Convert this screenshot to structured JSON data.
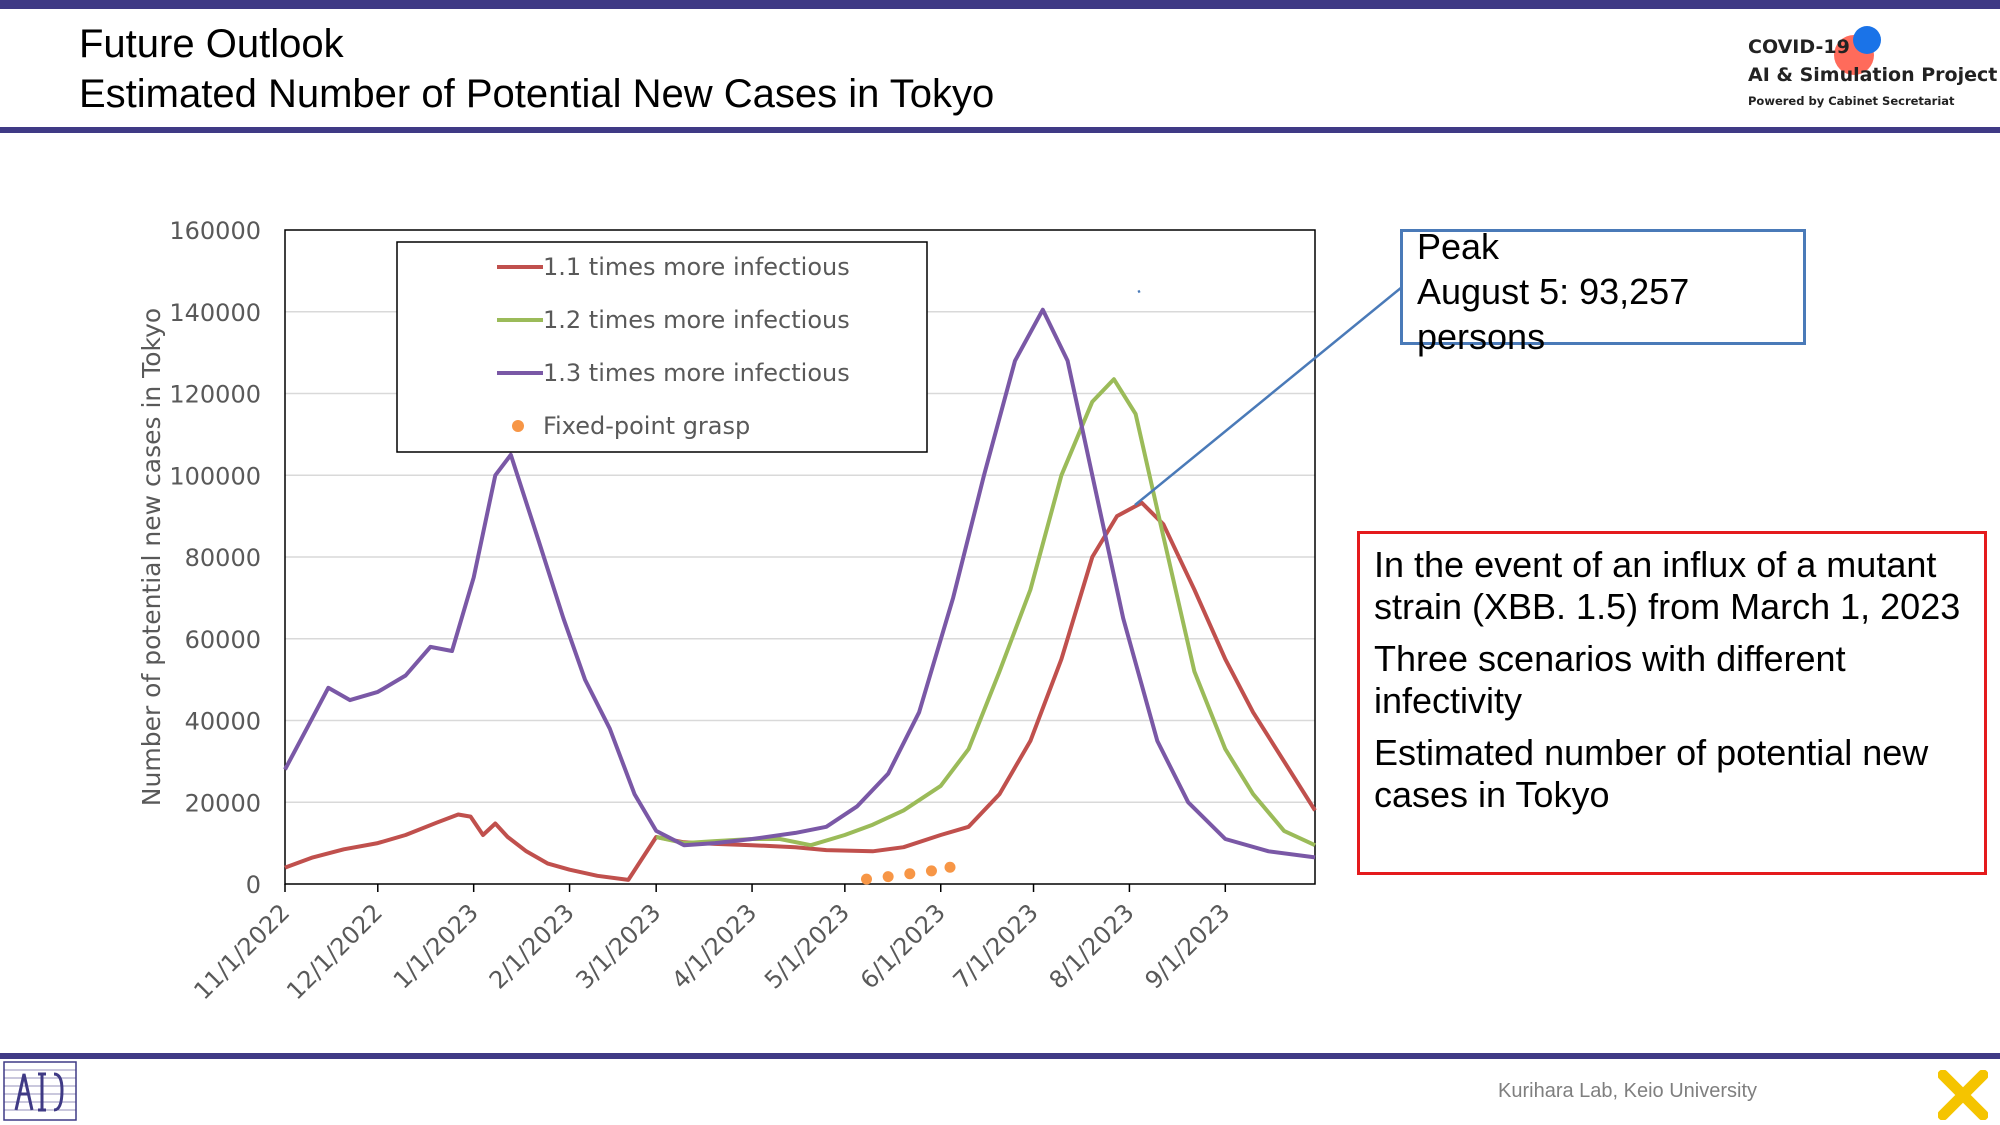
{
  "header": {
    "title_line1": "Future Outlook",
    "title_line2": "Estimated Number of Potential New Cases in Tokyo"
  },
  "logo": {
    "line1": "COVID-19",
    "line2": "AI & Simulation Project",
    "line3": "Powered by Cabinet Secretariat",
    "dot_colors": [
      "#1a73e8",
      "#ff6b5b"
    ]
  },
  "peak_annotation": {
    "line1": "Peak",
    "line2": "August 5: 93,257",
    "line3": "persons"
  },
  "info_box": {
    "paragraphs": [
      "In the event of an influx of a mutant strain (XBB. 1.5) from March 1, 2023",
      "Three scenarios with different infectivity",
      "Estimated number of potential new cases in Tokyo"
    ]
  },
  "footer": {
    "credit": "Kurihara Lab, Keio University"
  },
  "chart_data": {
    "type": "line",
    "title": "",
    "xlabel": "",
    "ylabel": "Number of potential new cases in Tokyo",
    "ylim": [
      0,
      160000
    ],
    "xlim": [
      "2022-11-01",
      "2023-09-30"
    ],
    "yticks": [
      "0",
      "20000",
      "40000",
      "60000",
      "80000",
      "100000",
      "120000",
      "140000",
      "160000"
    ],
    "xticks": [
      "11/1/2022",
      "12/1/2022",
      "1/1/2023",
      "2/1/2023",
      "3/1/2023",
      "4/1/2023",
      "5/1/2023",
      "6/1/2023",
      "7/1/2023",
      "8/1/2023",
      "9/1/2023"
    ],
    "grid": "horizontal",
    "legend_position": "top-left",
    "series": [
      {
        "name": "1.1 times more infectious",
        "color": "#c0504d",
        "points": [
          [
            "2022-11-01",
            4000
          ],
          [
            "2022-11-10",
            6500
          ],
          [
            "2022-11-20",
            8500
          ],
          [
            "2022-12-01",
            10000
          ],
          [
            "2022-12-10",
            12000
          ],
          [
            "2022-12-20",
            15000
          ],
          [
            "2022-12-27",
            17000
          ],
          [
            "2022-12-31",
            16500
          ],
          [
            "2023-01-04",
            12000
          ],
          [
            "2023-01-08",
            14800
          ],
          [
            "2023-01-12",
            11500
          ],
          [
            "2023-01-18",
            8000
          ],
          [
            "2023-01-25",
            5000
          ],
          [
            "2023-02-01",
            3500
          ],
          [
            "2023-02-10",
            2000
          ],
          [
            "2023-02-20",
            1000
          ],
          [
            "2023-03-01",
            11500
          ],
          [
            "2023-03-10",
            10200
          ],
          [
            "2023-03-20",
            9800
          ],
          [
            "2023-04-01",
            9500
          ],
          [
            "2023-04-15",
            9000
          ],
          [
            "2023-04-25",
            8300
          ],
          [
            "2023-05-10",
            8000
          ],
          [
            "2023-05-20",
            9000
          ],
          [
            "2023-06-01",
            12000
          ],
          [
            "2023-06-10",
            14000
          ],
          [
            "2023-06-20",
            22000
          ],
          [
            "2023-06-30",
            35000
          ],
          [
            "2023-07-10",
            55000
          ],
          [
            "2023-07-20",
            80000
          ],
          [
            "2023-07-28",
            90000
          ],
          [
            "2023-08-05",
            93257
          ],
          [
            "2023-08-12",
            88000
          ],
          [
            "2023-08-22",
            72000
          ],
          [
            "2023-09-01",
            55000
          ],
          [
            "2023-09-10",
            42000
          ],
          [
            "2023-09-20",
            30000
          ],
          [
            "2023-09-30",
            18000
          ]
        ]
      },
      {
        "name": "1.2 times more infectious",
        "color": "#9bbb59",
        "points": [
          [
            "2023-03-01",
            11500
          ],
          [
            "2023-03-10",
            10000
          ],
          [
            "2023-03-20",
            10500
          ],
          [
            "2023-04-01",
            11000
          ],
          [
            "2023-04-10",
            11000
          ],
          [
            "2023-04-20",
            9500
          ],
          [
            "2023-05-01",
            12000
          ],
          [
            "2023-05-10",
            14500
          ],
          [
            "2023-05-20",
            18000
          ],
          [
            "2023-06-01",
            24000
          ],
          [
            "2023-06-10",
            33000
          ],
          [
            "2023-06-20",
            52000
          ],
          [
            "2023-06-30",
            72000
          ],
          [
            "2023-07-10",
            100000
          ],
          [
            "2023-07-20",
            118000
          ],
          [
            "2023-07-27",
            123500
          ],
          [
            "2023-08-03",
            115000
          ],
          [
            "2023-08-12",
            85000
          ],
          [
            "2023-08-22",
            52000
          ],
          [
            "2023-09-01",
            33000
          ],
          [
            "2023-09-10",
            22000
          ],
          [
            "2023-09-20",
            13000
          ],
          [
            "2023-09-30",
            9500
          ]
        ]
      },
      {
        "name": "1.3 times more infectious",
        "color": "#7a58a6",
        "points": [
          [
            "2022-11-01",
            28000
          ],
          [
            "2022-11-08",
            38000
          ],
          [
            "2022-11-15",
            48000
          ],
          [
            "2022-11-22",
            45000
          ],
          [
            "2022-12-01",
            47000
          ],
          [
            "2022-12-10",
            51000
          ],
          [
            "2022-12-18",
            58000
          ],
          [
            "2022-12-25",
            57000
          ],
          [
            "2023-01-01",
            75000
          ],
          [
            "2023-01-08",
            100000
          ],
          [
            "2023-01-13",
            105000
          ],
          [
            "2023-01-22",
            84000
          ],
          [
            "2023-01-30",
            65000
          ],
          [
            "2023-02-06",
            50000
          ],
          [
            "2023-02-14",
            38000
          ],
          [
            "2023-02-22",
            22000
          ],
          [
            "2023-03-01",
            13000
          ],
          [
            "2023-03-10",
            9500
          ],
          [
            "2023-03-20",
            10000
          ],
          [
            "2023-04-01",
            11000
          ],
          [
            "2023-04-15",
            12500
          ],
          [
            "2023-04-25",
            14000
          ],
          [
            "2023-05-05",
            19000
          ],
          [
            "2023-05-15",
            27000
          ],
          [
            "2023-05-25",
            42000
          ],
          [
            "2023-06-05",
            70000
          ],
          [
            "2023-06-15",
            100000
          ],
          [
            "2023-06-25",
            128000
          ],
          [
            "2023-07-04",
            140500
          ],
          [
            "2023-07-12",
            128000
          ],
          [
            "2023-07-20",
            100000
          ],
          [
            "2023-07-30",
            65000
          ],
          [
            "2023-08-10",
            35000
          ],
          [
            "2023-08-20",
            20000
          ],
          [
            "2023-09-01",
            11000
          ],
          [
            "2023-09-15",
            8000
          ],
          [
            "2023-09-30",
            6500
          ]
        ]
      },
      {
        "name": "Fixed-point grasp",
        "color": "#f79646",
        "markers": true,
        "points": [
          [
            "2023-05-08",
            1200
          ],
          [
            "2023-05-15",
            1800
          ],
          [
            "2023-05-22",
            2500
          ],
          [
            "2023-05-29",
            3200
          ],
          [
            "2023-06-04",
            4100
          ]
        ]
      }
    ]
  }
}
